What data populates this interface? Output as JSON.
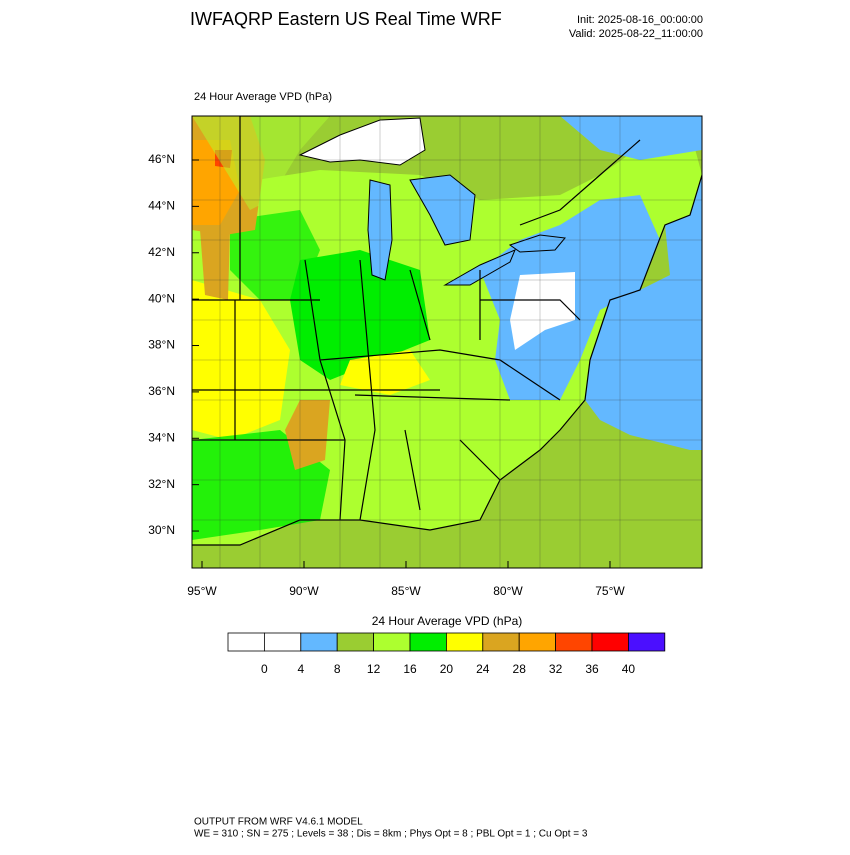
{
  "header": {
    "title": "IWFAQRP Eastern US Real Time WRF",
    "init": "Init: 2025-08-16_00:00:00",
    "valid": "Valid: 2025-08-22_11:00:00"
  },
  "map": {
    "title": "24 Hour Average VPD   (hPa)",
    "lat_ticks": [
      {
        "value": 46,
        "label": "46°N"
      },
      {
        "value": 44,
        "label": "44°N"
      },
      {
        "value": 42,
        "label": "42°N"
      },
      {
        "value": 40,
        "label": "40°N"
      },
      {
        "value": 38,
        "label": "38°N"
      },
      {
        "value": 36,
        "label": "36°N"
      },
      {
        "value": 34,
        "label": "34°N"
      },
      {
        "value": 32,
        "label": "32°N"
      },
      {
        "value": 30,
        "label": "30°N"
      }
    ],
    "lon_ticks": [
      {
        "value": -95,
        "label": "95°W"
      },
      {
        "value": -90,
        "label": "90°W"
      },
      {
        "value": -85,
        "label": "85°W"
      },
      {
        "value": -80,
        "label": "80°W"
      },
      {
        "value": -75,
        "label": "75°W"
      }
    ]
  },
  "colorbar": {
    "title": "24 Hour Average VPD  (hPa)",
    "colors": [
      "#ffffff",
      "#ffffff",
      "#63b8ff",
      "#9acd32",
      "#adff2f",
      "#00ee00",
      "#ffff00",
      "#daa520",
      "#ffa500",
      "#ff4500",
      "#ff0000",
      "#4b0fff"
    ],
    "levels": [
      0,
      4,
      8,
      12,
      16,
      20,
      24,
      28,
      32,
      36,
      40
    ]
  },
  "footer": {
    "line1": "OUTPUT FROM WRF V4.6.1 MODEL",
    "line2": "WE = 310 ; SN = 275 ; Levels = 38 ; Dis = 8km ; Phys Opt = 8 ; PBL Opt = 1 ; Cu Opt = 3"
  }
}
